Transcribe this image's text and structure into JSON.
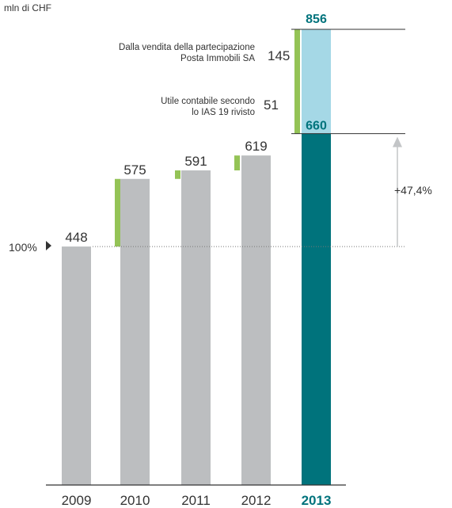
{
  "chart_data": {
    "type": "bar",
    "unit_label": "mln di CHF",
    "categories": [
      "2009",
      "2010",
      "2011",
      "2012",
      "2013"
    ],
    "values": [
      448,
      575,
      591,
      619,
      660
    ],
    "value_labels": [
      "448",
      "575",
      "591",
      "619",
      "660"
    ],
    "increments": [
      null,
      127,
      16,
      28,
      196
    ],
    "highlight_category": "2013",
    "stacked_2013": {
      "base_value": 660,
      "top_value": 856,
      "top_label": "856",
      "segment_value": 196
    },
    "annotations": [
      {
        "line1": "Dalla vendita della partecipazione",
        "line2": "Posta Immobili SA",
        "value": "145"
      },
      {
        "line1": "Utile contabile secondo",
        "line2": "lo IAS 19 rivisto",
        "value": "51"
      }
    ],
    "baseline_marker": "100%",
    "growth_label": "+47,4%",
    "ylim": [
      0,
      856
    ],
    "colors": {
      "bar": "#bcbec0",
      "increment": "#94c356",
      "highlight": "#00737c",
      "highlight_top": "#a5d8e6",
      "arrow": "#c3c5c7"
    }
  }
}
